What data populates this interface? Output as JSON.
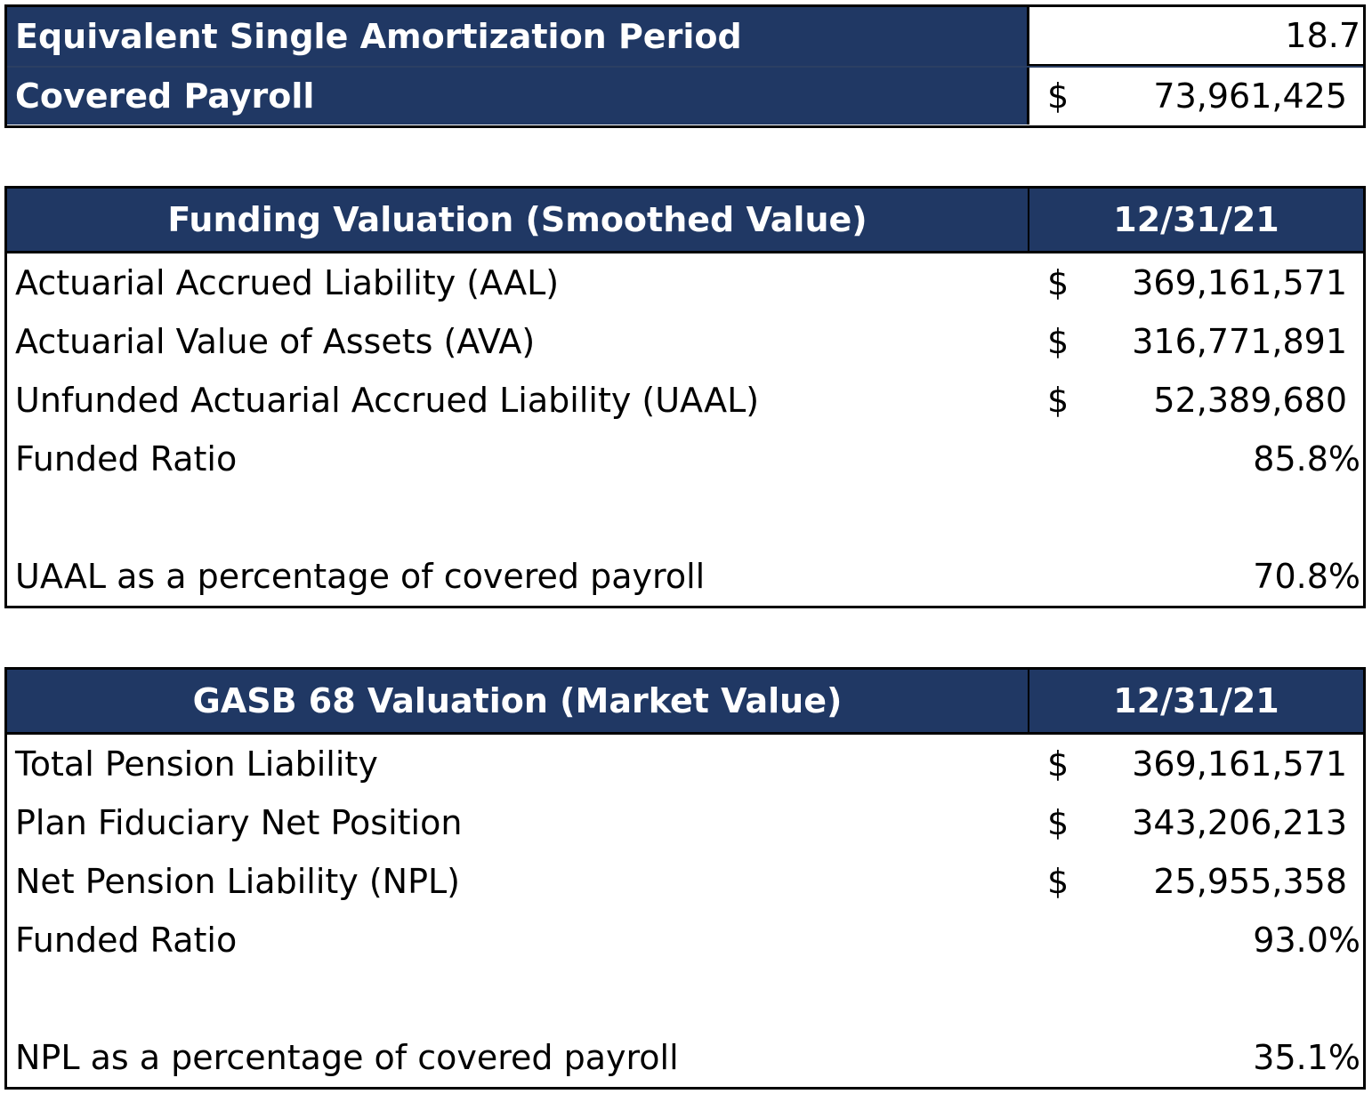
{
  "summary": {
    "rows": [
      {
        "label": "Equivalent Single Amortization Period",
        "currency": "",
        "value": "18.7"
      },
      {
        "label": "Covered Payroll",
        "currency": "$",
        "value": "73,961,425"
      }
    ]
  },
  "funding": {
    "header_label": "Funding Valuation (Smoothed Value)",
    "header_date": "12/31/21",
    "rows": [
      {
        "label": "Actuarial Accrued Liability (AAL)",
        "currency": "$",
        "value": "369,161,571"
      },
      {
        "label": "Actuarial Value of Assets (AVA)",
        "currency": "$",
        "value": "316,771,891"
      },
      {
        "label": "Unfunded Actuarial Accrued Liability (UAAL)",
        "currency": "$",
        "value": "52,389,680"
      },
      {
        "label": "Funded Ratio",
        "value": "85.8%"
      }
    ],
    "footer": {
      "label": "UAAL as a percentage of covered payroll",
      "value": "70.8%"
    }
  },
  "gasb": {
    "header_label": "GASB 68 Valuation (Market Value)",
    "header_date": "12/31/21",
    "rows": [
      {
        "label": "Total Pension Liability",
        "currency": "$",
        "value": "369,161,571"
      },
      {
        "label": "Plan Fiduciary Net Position",
        "currency": "$",
        "value": "343,206,213"
      },
      {
        "label": "Net Pension Liability (NPL)",
        "currency": "$",
        "value": "25,955,358"
      },
      {
        "label": "Funded Ratio",
        "value": "93.0%"
      }
    ],
    "footer": {
      "label": "NPL as a percentage of covered payroll",
      "value": "35.1%"
    }
  },
  "colors": {
    "header_navy": "#203864",
    "border": "#000000"
  }
}
